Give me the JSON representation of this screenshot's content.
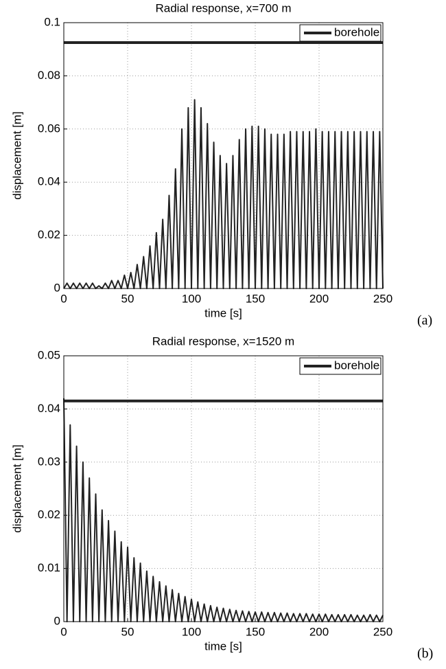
{
  "chart_data": [
    {
      "type": "line",
      "title": "Radial response, x=700 m",
      "xlabel": "time [s]",
      "ylabel": "displacement [m]",
      "panel_label": "(a)",
      "x": [
        0,
        2.5,
        5,
        7.5,
        10,
        12.5,
        15,
        17.5,
        20,
        22.5,
        25,
        27.5,
        30,
        32.5,
        35,
        37.5,
        40,
        42.5,
        45,
        47.5,
        50,
        52.5,
        55,
        57.5,
        60,
        62.5,
        65,
        67.5,
        70,
        72.5,
        75,
        77.5,
        80,
        82.5,
        85,
        87.5,
        90,
        92.5,
        95,
        97.5,
        100,
        102.5,
        105,
        107.5,
        110,
        112.5,
        115,
        117.5,
        120,
        122.5,
        125,
        127.5,
        130,
        132.5,
        135,
        137.5,
        140,
        142.5,
        145,
        147.5,
        150,
        152.5,
        155,
        157.5,
        160,
        162.5,
        165,
        167.5,
        170,
        172.5,
        175,
        177.5,
        180,
        182.5,
        185,
        187.5,
        190,
        192.5,
        195,
        197.5,
        200,
        202.5,
        205,
        207.5,
        210,
        212.5,
        215,
        217.5,
        220,
        222.5,
        225,
        227.5,
        230,
        232.5,
        235,
        237.5,
        240,
        242.5,
        245,
        247.5,
        250
      ],
      "series": [
        {
          "color": "#222222",
          "values": [
            0,
            0.002,
            0,
            0.002,
            0,
            0.002,
            0,
            0.002,
            0,
            0.002,
            0,
            0.001,
            0,
            0.002,
            0,
            0.003,
            0,
            0.003,
            0,
            0.005,
            0,
            0.006,
            0,
            0.009,
            0,
            0.012,
            0,
            0.016,
            0,
            0.021,
            0,
            0.026,
            0,
            0.035,
            0,
            0.045,
            0,
            0.06,
            0,
            0.068,
            0,
            0.071,
            0,
            0.068,
            0,
            0.062,
            0,
            0.055,
            0,
            0.05,
            0,
            0.047,
            0,
            0.05,
            0,
            0.056,
            0,
            0.06,
            0,
            0.061,
            0,
            0.061,
            0,
            0.06,
            0,
            0.058,
            0,
            0.058,
            0,
            0.058,
            0,
            0.059,
            0,
            0.059,
            0,
            0.059,
            0,
            0.059,
            0,
            0.06,
            0,
            0.059,
            0,
            0.059,
            0,
            0.059,
            0,
            0.059,
            0,
            0.059,
            0,
            0.059,
            0,
            0.059,
            0,
            0.059,
            0,
            0.059,
            0,
            0.059,
            0
          ]
        },
        {
          "name": "borehole",
          "color": "#222222",
          "x": [
            0,
            250
          ],
          "values": [
            0.0925,
            0.0925
          ]
        }
      ],
      "xlim": [
        0,
        250
      ],
      "xticks": [
        0,
        50,
        100,
        150,
        200,
        250
      ],
      "ylim": [
        0,
        0.1
      ],
      "yticks": [
        0,
        0.02,
        0.04,
        0.06,
        0.08,
        0.1
      ],
      "grid": true,
      "legend": "upper right"
    },
    {
      "type": "line",
      "title": "Radial response, x=1520 m",
      "xlabel": "time [s]",
      "ylabel": "displacement [m]",
      "panel_label": "(b)",
      "x": [
        0,
        2.5,
        5,
        7.5,
        10,
        12.5,
        15,
        17.5,
        20,
        22.5,
        25,
        27.5,
        30,
        32.5,
        35,
        37.5,
        40,
        42.5,
        45,
        47.5,
        50,
        52.5,
        55,
        57.5,
        60,
        62.5,
        65,
        67.5,
        70,
        72.5,
        75,
        77.5,
        80,
        82.5,
        85,
        87.5,
        90,
        92.5,
        95,
        97.5,
        100,
        102.5,
        105,
        107.5,
        110,
        112.5,
        115,
        117.5,
        120,
        122.5,
        125,
        127.5,
        130,
        132.5,
        135,
        137.5,
        140,
        142.5,
        145,
        147.5,
        150,
        152.5,
        155,
        157.5,
        160,
        162.5,
        165,
        167.5,
        170,
        172.5,
        175,
        177.5,
        180,
        182.5,
        185,
        187.5,
        190,
        192.5,
        195,
        197.5,
        200,
        202.5,
        205,
        207.5,
        210,
        212.5,
        215,
        217.5,
        220,
        222.5,
        225,
        227.5,
        230,
        232.5,
        235,
        237.5,
        240,
        242.5,
        245,
        247.5,
        250
      ],
      "series": [
        {
          "color": "#222222",
          "values": [
            0.042,
            0,
            0.037,
            0,
            0.033,
            0,
            0.03,
            0,
            0.027,
            0,
            0.024,
            0,
            0.021,
            0,
            0.019,
            0,
            0.017,
            0,
            0.015,
            0,
            0.014,
            0,
            0.012,
            0,
            0.011,
            0,
            0.0095,
            0,
            0.0085,
            0,
            0.0075,
            0,
            0.0067,
            0,
            0.006,
            0,
            0.0053,
            0,
            0.0047,
            0,
            0.0042,
            0,
            0.0037,
            0,
            0.0033,
            0,
            0.003,
            0,
            0.0027,
            0,
            0.0025,
            0,
            0.0023,
            0,
            0.0021,
            0,
            0.002,
            0,
            0.0019,
            0,
            0.0018,
            0,
            0.0018,
            0,
            0.0017,
            0,
            0.0017,
            0,
            0.0016,
            0,
            0.0016,
            0,
            0.0015,
            0,
            0.0015,
            0,
            0.0015,
            0,
            0.0014,
            0,
            0.0014,
            0,
            0.0014,
            0,
            0.0013,
            0,
            0.0013,
            0,
            0.0013,
            0,
            0.0013,
            0,
            0.0012,
            0,
            0.0012,
            0,
            0.0013,
            0,
            0.0012,
            0,
            0.0012
          ]
        },
        {
          "name": "borehole",
          "color": "#222222",
          "x": [
            0,
            250
          ],
          "values": [
            0.0415,
            0.0415
          ]
        }
      ],
      "xlim": [
        0,
        250
      ],
      "xticks": [
        0,
        50,
        100,
        150,
        200,
        250
      ],
      "ylim": [
        0,
        0.05
      ],
      "yticks": [
        0,
        0.01,
        0.02,
        0.03,
        0.04,
        0.05
      ],
      "grid": true,
      "legend": "upper right"
    }
  ]
}
